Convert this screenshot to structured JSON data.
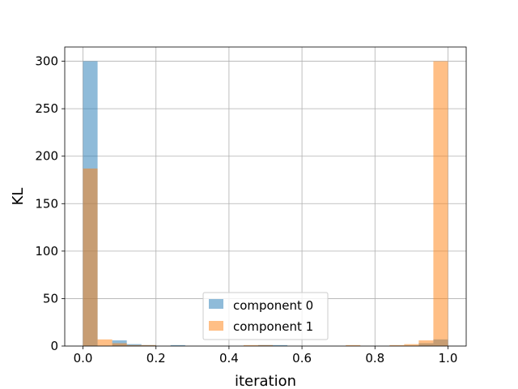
{
  "chart_data": {
    "type": "bar",
    "title": "",
    "xlabel": "iteration",
    "ylabel": "KL",
    "xlim": [
      -0.05,
      1.05
    ],
    "ylim": [
      0,
      315
    ],
    "xticks": [
      0.0,
      0.2,
      0.4,
      0.6,
      0.8,
      1.0
    ],
    "xtick_labels": [
      "0.0",
      "0.2",
      "0.4",
      "0.6",
      "0.8",
      "1.0"
    ],
    "yticks": [
      0,
      50,
      100,
      150,
      200,
      250,
      300
    ],
    "ytick_labels": [
      "0",
      "50",
      "100",
      "150",
      "200",
      "250",
      "300"
    ],
    "grid": true,
    "legend_position": "bottom-center",
    "bin_edges": [
      0.0,
      0.04,
      0.08,
      0.12,
      0.16,
      0.2,
      0.24,
      0.28,
      0.32,
      0.36,
      0.4,
      0.44,
      0.48,
      0.52,
      0.56,
      0.6,
      0.64,
      0.68,
      0.72,
      0.76,
      0.8,
      0.84,
      0.88,
      0.92,
      0.96,
      1.0
    ],
    "series": [
      {
        "name": "component 0",
        "color": "#1f77b4",
        "values": [
          300,
          0,
          6,
          2,
          1,
          0,
          1,
          0,
          0,
          0,
          0,
          0,
          1,
          1,
          0,
          0,
          0,
          0,
          0,
          0,
          0,
          0,
          0,
          3,
          7
        ]
      },
      {
        "name": "component 1",
        "color": "#ff7f0e",
        "values": [
          187,
          7,
          3,
          1,
          1,
          0,
          0,
          0,
          0,
          0,
          0,
          1,
          1,
          0,
          0,
          0,
          0,
          0,
          1,
          0,
          0,
          1,
          2,
          6,
          300
        ]
      }
    ]
  }
}
